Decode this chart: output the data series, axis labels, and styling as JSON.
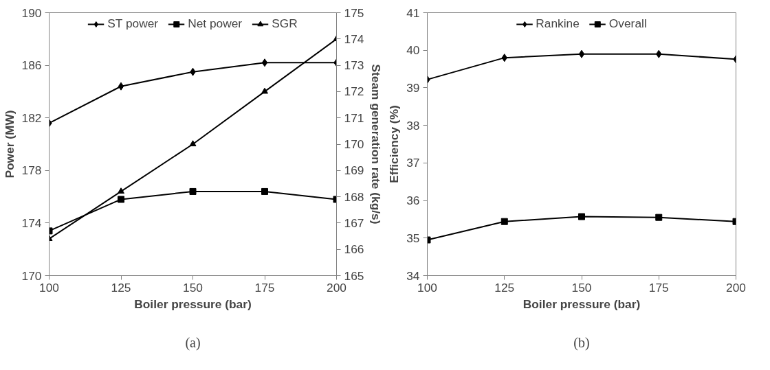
{
  "chart_data": [
    {
      "type": "line",
      "xlabel": "Boiler pressure (bar)",
      "ylabel": "Power (MW)",
      "y2label": "Steam generation rate (kg/s)",
      "annotations": [
        "(a)"
      ],
      "x": [
        100,
        125,
        150,
        175,
        200
      ],
      "xlim": [
        100,
        200
      ],
      "xticks": [
        100,
        125,
        150,
        175,
        200
      ],
      "ylim": [
        170,
        190
      ],
      "yticks": [
        170,
        174,
        178,
        182,
        186,
        190
      ],
      "y2lim": [
        165,
        175
      ],
      "y2ticks": [
        165,
        166,
        167,
        168,
        169,
        170,
        171,
        172,
        173,
        174,
        175
      ],
      "grid": false,
      "legend": "top",
      "line_style": "solid",
      "series": [
        {
          "name": "ST power",
          "color": "#000000",
          "marker": "diamond",
          "values": [
            181.6,
            184.4,
            185.5,
            186.2,
            186.2
          ]
        },
        {
          "name": "Net power",
          "color": "#000000",
          "marker": "square",
          "values": [
            173.4,
            175.8,
            176.4,
            176.4,
            175.8
          ]
        },
        {
          "name": "SGR",
          "color": "#000000",
          "marker": "triangle",
          "axis": "y2",
          "values": [
            166.4,
            168.2,
            170.0,
            172.0,
            174.0
          ]
        }
      ]
    },
    {
      "type": "line",
      "xlabel": "Boiler pressure (bar)",
      "ylabel": "Efficiency (%)",
      "annotations": [
        "(b)"
      ],
      "x": [
        100,
        125,
        150,
        175,
        200
      ],
      "xlim": [
        100,
        200
      ],
      "xticks": [
        100,
        125,
        150,
        175,
        200
      ],
      "ylim": [
        34,
        41
      ],
      "yticks": [
        34,
        35,
        36,
        37,
        38,
        39,
        40,
        41
      ],
      "grid": false,
      "legend": "top",
      "line_style": "solid",
      "series": [
        {
          "name": "Rankine",
          "color": "#000000",
          "marker": "diamond",
          "values": [
            39.22,
            39.8,
            39.9,
            39.9,
            39.76
          ]
        },
        {
          "name": "Overall",
          "color": "#000000",
          "marker": "square",
          "values": [
            34.95,
            35.44,
            35.57,
            35.55,
            35.44
          ]
        }
      ]
    }
  ]
}
